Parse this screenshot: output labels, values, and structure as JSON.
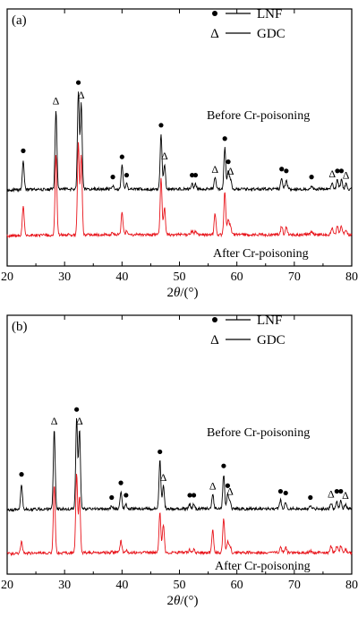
{
  "chart_data": [
    {
      "type": "line",
      "panel_label": "(a)",
      "xlabel_prefix": "2",
      "xlabel_theta": "θ",
      "xlabel_suffix": "/(°)",
      "xlim": [
        20,
        80
      ],
      "xticks": [
        20,
        30,
        40,
        50,
        60,
        70,
        80
      ],
      "legend": [
        {
          "symbol": "•",
          "label": "LNF"
        },
        {
          "symbol": "Δ",
          "label": "GDC"
        }
      ],
      "series": [
        {
          "name": "Before Cr-poisoning",
          "color": "#000000"
        },
        {
          "name": "After Cr-poisoning",
          "color": "#e8141b"
        }
      ],
      "peaks": [
        {
          "x": 22.8,
          "before": 48,
          "after": 50,
          "marker": "dot"
        },
        {
          "x": 28.5,
          "before": 130,
          "after": 130,
          "marker": "tri"
        },
        {
          "x": 32.4,
          "before": 160,
          "after": 150,
          "marker": "dot"
        },
        {
          "x": 32.9,
          "before": 140,
          "after": 130,
          "marker": "tri"
        },
        {
          "x": 38.4,
          "before": 5,
          "after": 4,
          "marker": "dot"
        },
        {
          "x": 40.0,
          "before": 38,
          "after": 35,
          "marker": "dot"
        },
        {
          "x": 40.8,
          "before": 8,
          "after": 6,
          "marker": "dot"
        },
        {
          "x": 46.8,
          "before": 90,
          "after": 92,
          "marker": "dot"
        },
        {
          "x": 47.4,
          "before": 40,
          "after": 45,
          "marker": "tri"
        },
        {
          "x": 52.2,
          "before": 8,
          "after": 6,
          "marker": "dot"
        },
        {
          "x": 52.8,
          "before": 8,
          "after": 6,
          "marker": "dot"
        },
        {
          "x": 56.2,
          "before": 18,
          "after": 35,
          "marker": "tri"
        },
        {
          "x": 57.9,
          "before": 68,
          "after": 70,
          "marker": "dot"
        },
        {
          "x": 58.5,
          "before": 30,
          "after": 25,
          "marker": "dot"
        },
        {
          "x": 58.9,
          "before": 15,
          "after": 15,
          "marker": "tri"
        },
        {
          "x": 67.8,
          "before": 18,
          "after": 15,
          "marker": "dot"
        },
        {
          "x": 68.6,
          "before": 15,
          "after": 12,
          "marker": "dot"
        },
        {
          "x": 73.0,
          "before": 5,
          "after": 4,
          "marker": "dot"
        },
        {
          "x": 76.6,
          "before": 10,
          "after": 12,
          "marker": "tri"
        },
        {
          "x": 77.5,
          "before": 15,
          "after": 14,
          "marker": "dot"
        },
        {
          "x": 78.2,
          "before": 15,
          "after": 14,
          "marker": "dot"
        },
        {
          "x": 79.0,
          "before": 8,
          "after": 7,
          "marker": "tri"
        }
      ]
    },
    {
      "type": "line",
      "panel_label": "(b)",
      "xlabel_prefix": "2",
      "xlabel_theta": "θ",
      "xlabel_suffix": "/(°)",
      "xlim": [
        20,
        80
      ],
      "xticks": [
        20,
        30,
        40,
        50,
        60,
        70,
        80
      ],
      "legend": [
        {
          "symbol": "•",
          "label": "LNF"
        },
        {
          "symbol": "Δ",
          "label": "GDC"
        }
      ],
      "series": [
        {
          "name": "Before Cr-poisoning",
          "color": "#000000"
        },
        {
          "name": "After Cr-poisoning",
          "color": "#e8141b"
        }
      ],
      "peaks": [
        {
          "x": 22.5,
          "before": 45,
          "after": 20,
          "marker": "dot"
        },
        {
          "x": 28.2,
          "before": 140,
          "after": 120,
          "marker": "tri"
        },
        {
          "x": 32.1,
          "before": 160,
          "after": 140,
          "marker": "dot"
        },
        {
          "x": 32.6,
          "before": 140,
          "after": 100,
          "marker": "tri"
        },
        {
          "x": 38.2,
          "before": 4,
          "after": 3,
          "marker": "dot"
        },
        {
          "x": 39.8,
          "before": 30,
          "after": 20,
          "marker": "dot"
        },
        {
          "x": 40.7,
          "before": 8,
          "after": 5,
          "marker": "dot"
        },
        {
          "x": 46.6,
          "before": 85,
          "after": 70,
          "marker": "dot"
        },
        {
          "x": 47.2,
          "before": 40,
          "after": 50,
          "marker": "tri"
        },
        {
          "x": 51.8,
          "before": 8,
          "after": 5,
          "marker": "dot"
        },
        {
          "x": 52.5,
          "before": 8,
          "after": 5,
          "marker": "dot"
        },
        {
          "x": 55.8,
          "before": 25,
          "after": 40,
          "marker": "tri"
        },
        {
          "x": 57.7,
          "before": 60,
          "after": 60,
          "marker": "dot"
        },
        {
          "x": 58.4,
          "before": 25,
          "after": 20,
          "marker": "dot"
        },
        {
          "x": 58.8,
          "before": 15,
          "after": 12,
          "marker": "tri"
        },
        {
          "x": 67.6,
          "before": 15,
          "after": 12,
          "marker": "dot"
        },
        {
          "x": 68.5,
          "before": 12,
          "after": 10,
          "marker": "dot"
        },
        {
          "x": 72.8,
          "before": 4,
          "after": 3,
          "marker": "dot"
        },
        {
          "x": 76.4,
          "before": 10,
          "after": 12,
          "marker": "tri"
        },
        {
          "x": 77.4,
          "before": 15,
          "after": 12,
          "marker": "dot"
        },
        {
          "x": 78.1,
          "before": 15,
          "after": 12,
          "marker": "dot"
        },
        {
          "x": 78.9,
          "before": 8,
          "after": 6,
          "marker": "tri"
        }
      ]
    }
  ]
}
